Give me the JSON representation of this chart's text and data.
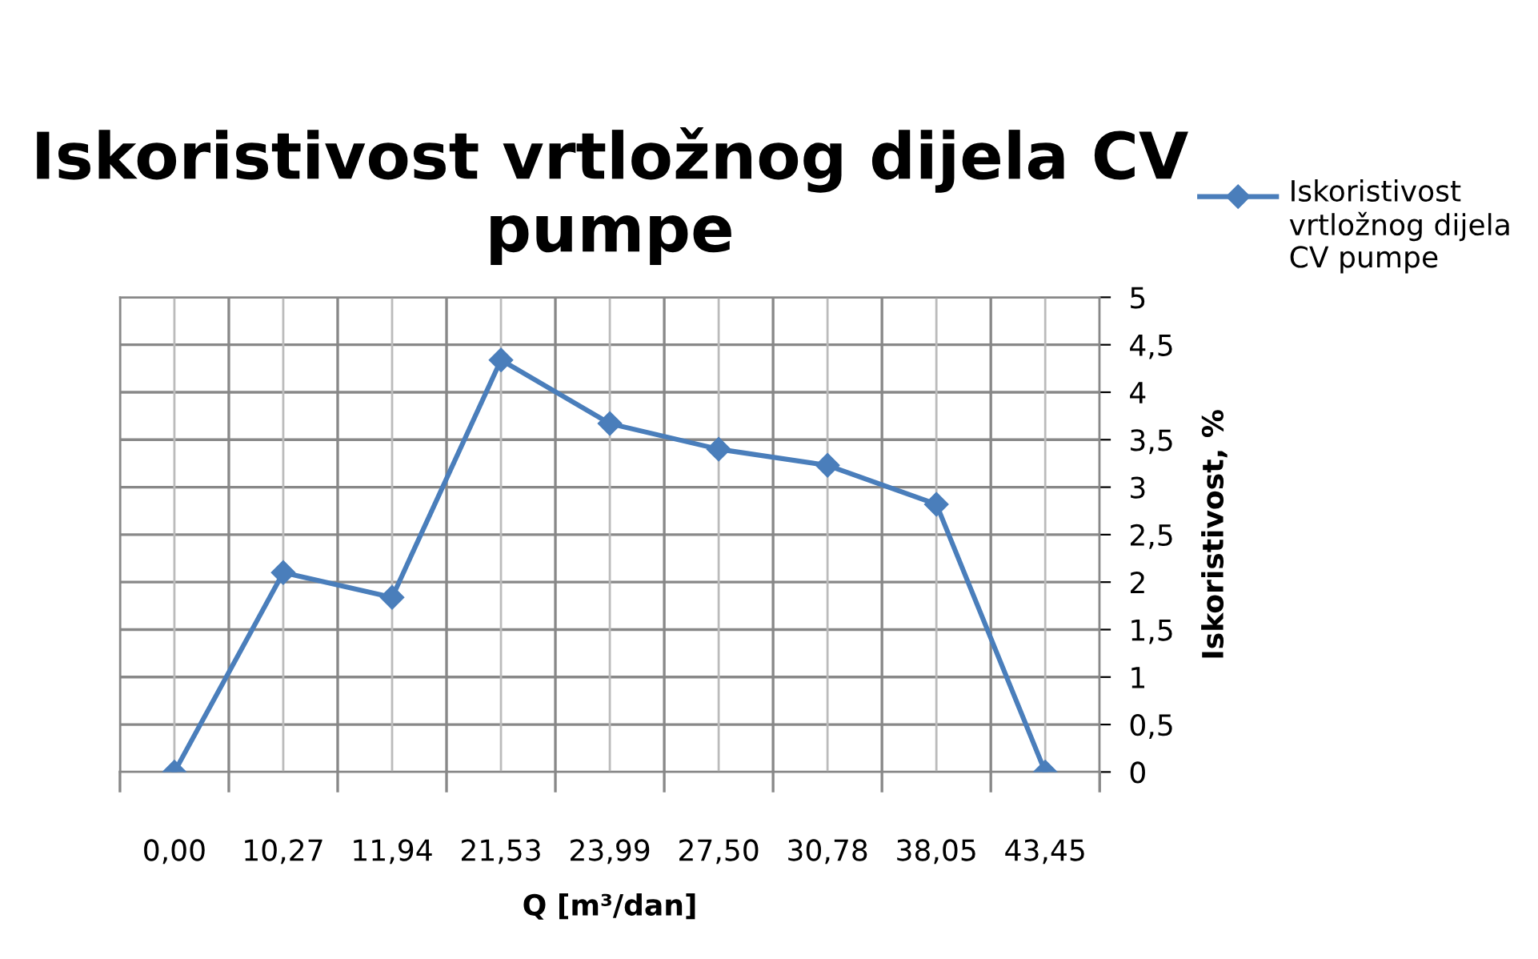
{
  "chart_data": {
    "type": "line",
    "title": "Iskoristivost vrtložnog dijela CV pumpe",
    "xlabel": "Q [m³/dan]",
    "ylabel": "Iskoristivost, %",
    "categories": [
      "0,00",
      "10,27",
      "11,94",
      "21,53",
      "23,99",
      "27,50",
      "30,78",
      "38,05",
      "43,45"
    ],
    "series": [
      {
        "name": "Iskoristivost vrtložnog dijela CV pumpe",
        "color": "#4a7ebb",
        "values": [
          0,
          2.1,
          1.84,
          4.34,
          3.67,
          3.4,
          3.23,
          2.82,
          0
        ]
      }
    ],
    "ylim": [
      0,
      5
    ],
    "yticks": [
      0,
      {
        "value": 0.5,
        "label": "0,5"
      },
      1,
      {
        "value": 1.5,
        "label": "1,5"
      },
      2,
      {
        "value": 2.5,
        "label": "2,5"
      },
      3,
      {
        "value": 3.5,
        "label": "3,5"
      },
      4,
      {
        "value": 4.5,
        "label": "4,5"
      },
      5
    ],
    "grid": true,
    "legend": "top right",
    "marker": "diamond",
    "line_style": "solid"
  }
}
